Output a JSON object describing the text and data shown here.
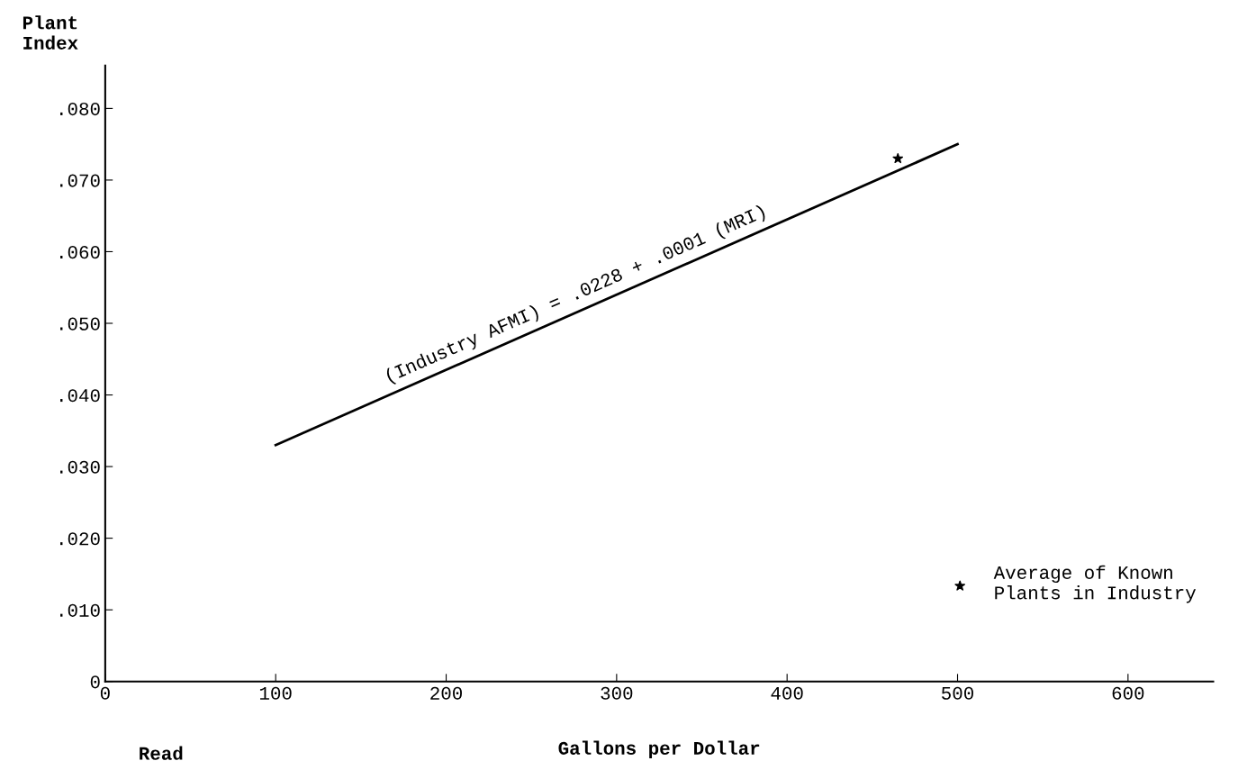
{
  "chart_data": {
    "type": "line",
    "xlabel": "Gallons per Dollar",
    "ylabel": "Plant\nIndex",
    "series": [
      {
        "color": "#000000",
        "x": [
          100,
          500
        ],
        "values": [
          0.033,
          0.075
        ]
      },
      {
        "type": "scatter",
        "name": "Average of Known\nPlants in Industry",
        "color": "#000000",
        "marker": "star",
        "x": [
          465
        ],
        "values": [
          0.073
        ]
      }
    ],
    "annotations": [
      "(Industry AFMI) = .0228 + .0001 (MRI)",
      "Read"
    ],
    "xlim": [
      0,
      650
    ],
    "xticks": [
      0,
      100,
      200,
      300,
      400,
      500,
      600
    ],
    "ylim": [
      0,
      0.086
    ],
    "yticks": [
      {
        "value": 0,
        "label": "0"
      },
      {
        "value": 0.01,
        "label": ".010"
      },
      {
        "value": 0.02,
        "label": ".020"
      },
      {
        "value": 0.03,
        "label": ".030"
      },
      {
        "value": 0.04,
        "label": ".040"
      },
      {
        "value": 0.05,
        "label": ".050"
      },
      {
        "value": 0.06,
        "label": ".060"
      },
      {
        "value": 0.07,
        "label": ".070"
      },
      {
        "value": 0.08,
        "label": ".080"
      }
    ],
    "legend": "bottom right",
    "grid": false
  }
}
